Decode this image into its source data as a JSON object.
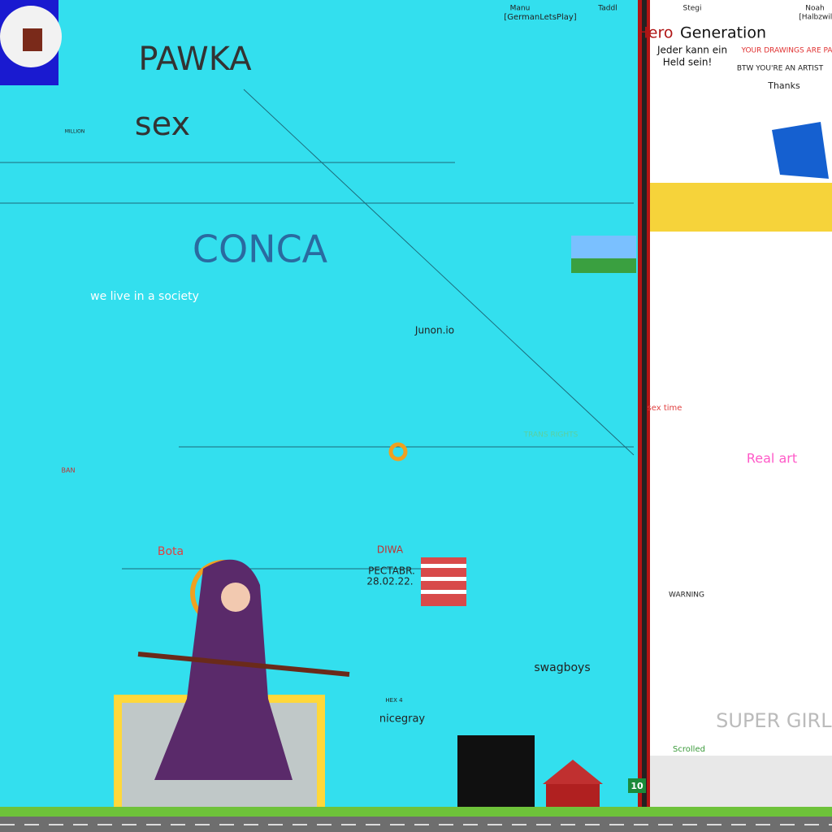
{
  "canvas": {
    "labels": [
      "Manu",
      "[GermanLetsPlay]",
      "Taddl",
      "Stegi",
      "Noah",
      "[Halbzwill",
      "Hero",
      "Generation",
      "Jeder kann ein",
      "Held sein!",
      "YOUR DRAWINGS ARE PARADISE",
      "BTW YOU'RE AN ARTIST",
      "Thanks",
      "PAWKA",
      "sex",
      "CONCA",
      "MILLION",
      "we live in a society",
      "Junon.io",
      "TRANS RIGHTS",
      "PECTABR.",
      "28.02.22.",
      "DIWA",
      "swagboys",
      "nicegray",
      "HEX 4",
      "sex time",
      "Real art",
      "WARNING",
      "Scrolled",
      "SUPER GIRLS",
      "BAN",
      "Bota"
    ],
    "badge": "10"
  }
}
